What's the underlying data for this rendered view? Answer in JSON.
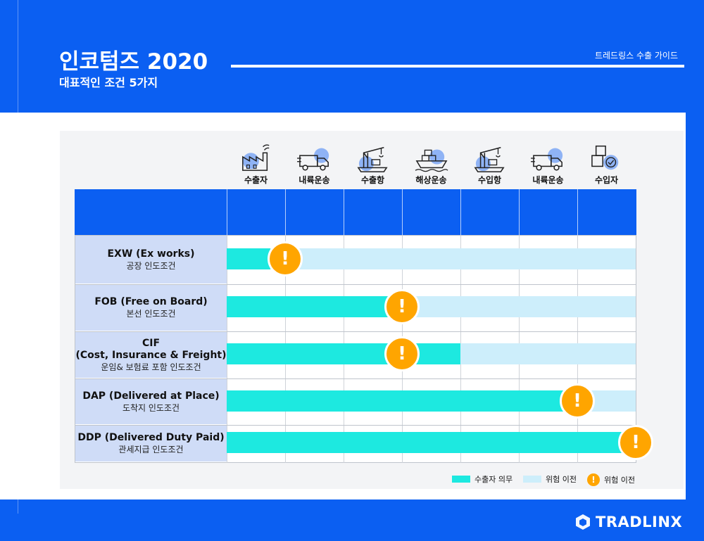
{
  "header": {
    "title": "인코텀즈 2020",
    "subtitle": "대표적인 조건 5가지",
    "guide_label": "트레드링스 수출 가이드"
  },
  "stages": [
    {
      "label": "수출자",
      "icon": "factory-icon"
    },
    {
      "label": "내륙운송",
      "icon": "truck-icon"
    },
    {
      "label": "수출항",
      "icon": "port-crane-icon"
    },
    {
      "label": "해상운송",
      "icon": "ship-icon"
    },
    {
      "label": "수입항",
      "icon": "port-crane-icon"
    },
    {
      "label": "내륙운송",
      "icon": "truck-icon"
    },
    {
      "label": "수입자",
      "icon": "boxes-check-icon"
    }
  ],
  "terms": [
    {
      "title": "EXW (Ex works)",
      "subtitle": "공장 인도조건",
      "duty_end_stage": 0.75,
      "risk_transfer_stage": 1.0,
      "risk_bar": true
    },
    {
      "title": "FOB (Free on Board)",
      "subtitle": "본선 인도조건",
      "duty_end_stage": 3.0,
      "risk_transfer_stage": 3.0,
      "risk_bar": true
    },
    {
      "title": "CIF\n(Cost, Insurance & Freight)",
      "subtitle": "운임& 보험료 포함 인도조건",
      "duty_end_stage": 4.0,
      "risk_transfer_stage": 3.0,
      "risk_bar": true
    },
    {
      "title": "DAP (Delivered at Place)",
      "subtitle": "도착지 인도조건",
      "duty_end_stage": 6.0,
      "risk_transfer_stage": 6.0,
      "risk_bar": true
    },
    {
      "title": "DDP (Delivered Duty Paid)",
      "subtitle": "관세지급 인도조건",
      "duty_end_stage": 7.0,
      "risk_transfer_stage": 7.0,
      "risk_bar": false
    }
  ],
  "legend": {
    "exporter_duty": "수출자 의무",
    "risk_transfer_bar": "위험 이전",
    "risk_transfer_point": "위험 이전",
    "warning_symbol": "!"
  },
  "colors": {
    "brand_blue": "#0b5ff2",
    "exporter_duty": "#1de9e0",
    "risk_transfer": "#cdeefb",
    "warning": "#ffa500",
    "label_bg": "#cfdcf7"
  },
  "brand": {
    "name": "TRADLINX",
    "icon": "tradlinx-logo-icon"
  }
}
